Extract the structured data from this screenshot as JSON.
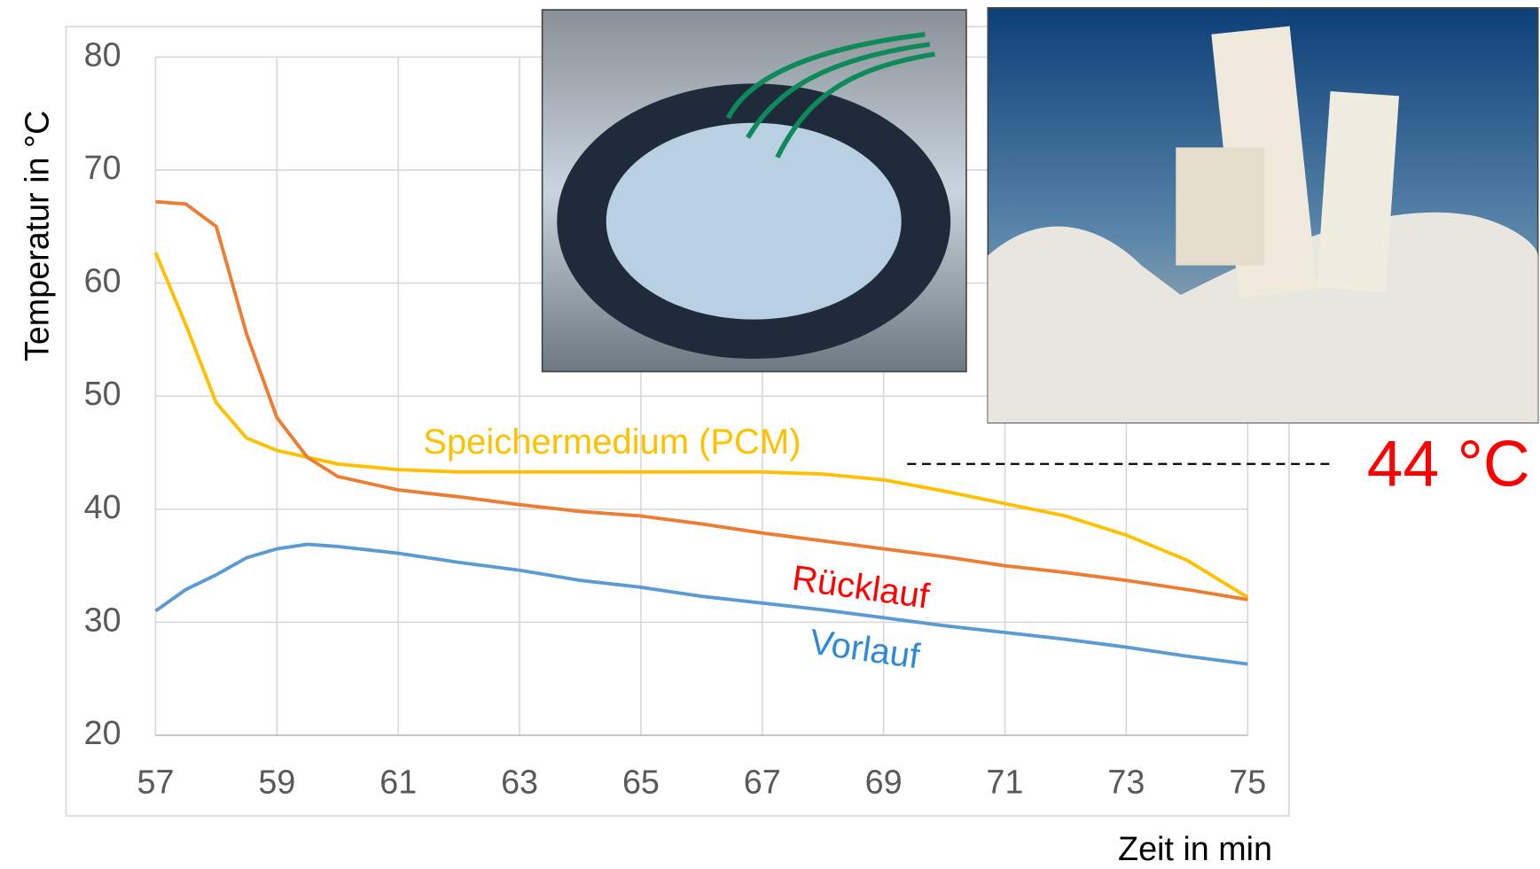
{
  "chart_data": {
    "type": "line",
    "x_label": "Zeit in min",
    "y_label": "Temperatur in °C",
    "x": [
      57,
      57.5,
      58,
      58.5,
      59,
      59.5,
      60,
      61,
      62,
      63,
      64,
      65,
      66,
      67,
      68,
      69,
      70,
      71,
      72,
      73,
      74,
      75
    ],
    "series": [
      {
        "name": "Speichermedium (PCM)",
        "color": "#ffc000",
        "label_color": "#ffc000",
        "values": [
          62.7,
          56.3,
          49.4,
          46.3,
          45.2,
          44.6,
          44.0,
          43.5,
          43.3,
          43.3,
          43.3,
          43.3,
          43.3,
          43.3,
          43.1,
          42.6,
          41.6,
          40.5,
          39.4,
          37.7,
          35.5,
          32.2
        ]
      },
      {
        "name": "Rücklauf",
        "color": "#ed7d31",
        "label_color": "#ff0000",
        "values": [
          67.2,
          67.0,
          65.0,
          55.5,
          48.1,
          44.6,
          42.9,
          41.7,
          41.1,
          40.4,
          39.8,
          39.4,
          38.7,
          37.9,
          37.2,
          36.5,
          35.8,
          35.0,
          34.4,
          33.7,
          32.9,
          32.0
        ]
      },
      {
        "name": "Vorlauf",
        "color": "#5b9bd5",
        "label_color": "#2e8ad8",
        "values": [
          31.0,
          32.9,
          34.2,
          35.7,
          36.5,
          36.9,
          36.7,
          36.1,
          35.3,
          34.6,
          33.7,
          33.1,
          32.3,
          31.7,
          31.1,
          30.4,
          29.7,
          29.1,
          28.5,
          27.8,
          27.0,
          26.3
        ]
      }
    ],
    "xlim": [
      57,
      75
    ],
    "xticks": [
      57,
      59,
      61,
      63,
      65,
      67,
      69,
      71,
      73,
      75
    ],
    "ylim": [
      20,
      80
    ],
    "yticks": [
      20,
      30,
      40,
      50,
      60,
      70,
      80
    ],
    "grid": true,
    "annotation": {
      "text": "44 °C",
      "value": 44,
      "color": "#ff0000"
    }
  }
}
